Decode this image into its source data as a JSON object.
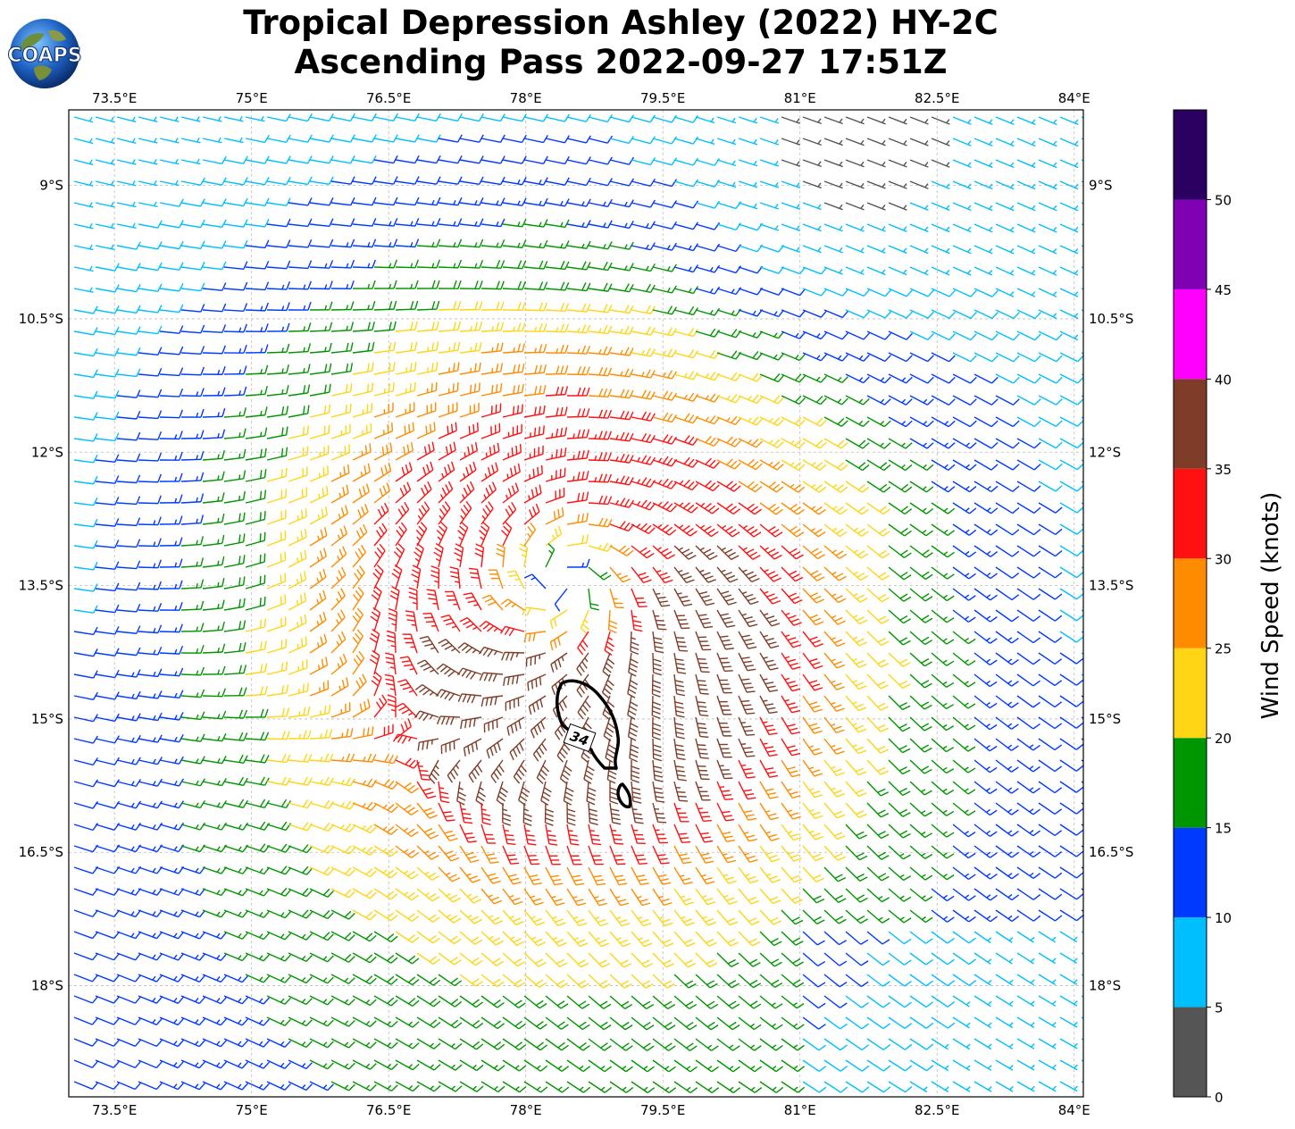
{
  "title": {
    "line1": "Tropical Depression Ashley (2022) HY-2C",
    "line2": "Ascending Pass 2022-09-27 17:51Z"
  },
  "logo": {
    "text": "COAPS"
  },
  "map": {
    "lon_range": [
      73.0,
      84.1
    ],
    "lat_range": [
      -19.25,
      -8.15
    ],
    "lon_ticks": [
      73.5,
      75,
      76.5,
      78,
      79.5,
      81,
      82.5,
      84
    ],
    "lon_tick_labels": [
      "73.5°E",
      "75°E",
      "76.5°E",
      "78°E",
      "79.5°E",
      "81°E",
      "82.5°E",
      "84°E"
    ],
    "lat_ticks": [
      -9,
      -10.5,
      -12,
      -13.5,
      -15,
      -16.5,
      -18
    ],
    "lat_tick_labels": [
      "9°S",
      "10.5°S",
      "12°S",
      "13.5°S",
      "15°S",
      "16.5°S",
      "18°S"
    ],
    "gridlines": true,
    "storm_center": {
      "lon": 78.4,
      "lat": -13.45
    },
    "contour_label": "34"
  },
  "colorbar": {
    "label": "Wind Speed (knots)",
    "bounds": [
      0,
      5,
      10,
      15,
      20,
      25,
      30,
      35,
      40,
      45,
      50,
      55
    ],
    "tick_values": [
      0,
      5,
      10,
      15,
      20,
      25,
      30,
      35,
      40,
      45,
      50
    ],
    "tick_labels": [
      "0",
      "5",
      "10",
      "15",
      "20",
      "25",
      "30",
      "35",
      "40",
      "45",
      "50"
    ],
    "colors": [
      "#555555",
      "#00bfff",
      "#0039ff",
      "#009600",
      "#ffd515",
      "#ff8c00",
      "#ff1111",
      "#7f3c28",
      "#ff00ff",
      "#8000b3",
      "#2a0060"
    ]
  }
}
